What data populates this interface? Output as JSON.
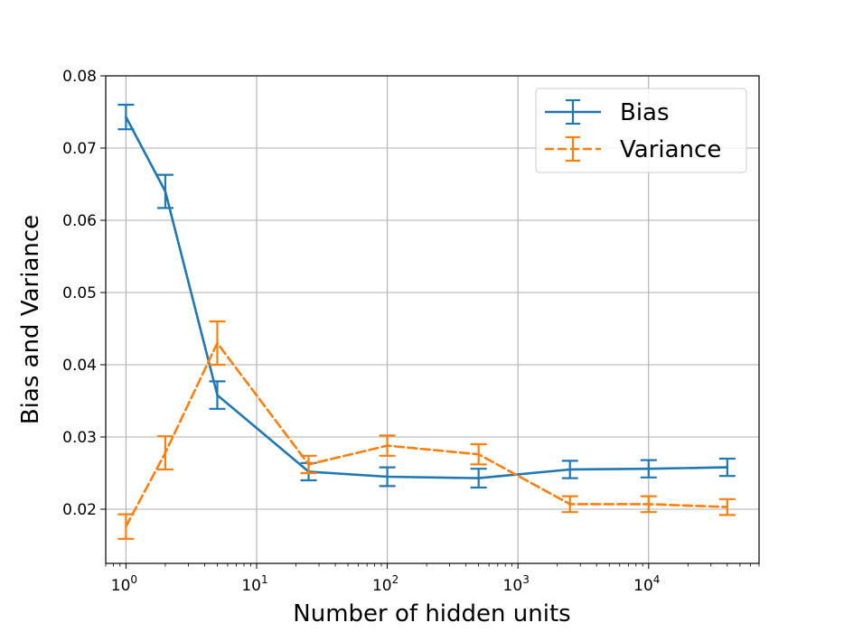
{
  "chart_data": {
    "type": "line",
    "xscale": "log",
    "xlabel": "Number of hidden units",
    "ylabel": "Bias and Variance",
    "xlim": [
      0.7,
      70000
    ],
    "ylim": [
      0.0125,
      0.08
    ],
    "yticks": [
      "0.02",
      "0.03",
      "0.04",
      "0.05",
      "0.06",
      "0.07",
      "0.08"
    ],
    "xticks": [
      {
        "value": 1,
        "base": "10",
        "exp": "0"
      },
      {
        "value": 10,
        "base": "10",
        "exp": "1"
      },
      {
        "value": 100,
        "base": "10",
        "exp": "2"
      },
      {
        "value": 1000,
        "base": "10",
        "exp": "3"
      },
      {
        "value": 10000,
        "base": "10",
        "exp": "4"
      }
    ],
    "grid": true,
    "legend_position": "top-right",
    "series": [
      {
        "name": "Bias",
        "color": "#1f77b4",
        "linestyle": "solid",
        "points": [
          {
            "x": 1,
            "y": 0.0743,
            "err": 0.0017
          },
          {
            "x": 2,
            "y": 0.064,
            "err": 0.0023
          },
          {
            "x": 5,
            "y": 0.0358,
            "err": 0.0019
          },
          {
            "x": 25,
            "y": 0.0252,
            "err": 0.0012
          },
          {
            "x": 100,
            "y": 0.0245,
            "err": 0.0013
          },
          {
            "x": 500,
            "y": 0.0243,
            "err": 0.0013
          },
          {
            "x": 2500,
            "y": 0.0255,
            "err": 0.0012
          },
          {
            "x": 10000,
            "y": 0.0256,
            "err": 0.0012
          },
          {
            "x": 40000,
            "y": 0.0258,
            "err": 0.0012
          }
        ]
      },
      {
        "name": "Variance",
        "color": "#ff7f0e",
        "linestyle": "dashed",
        "points": [
          {
            "x": 1,
            "y": 0.0176,
            "err": 0.0017
          },
          {
            "x": 2,
            "y": 0.0278,
            "err": 0.0023
          },
          {
            "x": 5,
            "y": 0.043,
            "err": 0.003
          },
          {
            "x": 25,
            "y": 0.0262,
            "err": 0.0012
          },
          {
            "x": 100,
            "y": 0.0288,
            "err": 0.0014
          },
          {
            "x": 500,
            "y": 0.0276,
            "err": 0.0014
          },
          {
            "x": 2500,
            "y": 0.0207,
            "err": 0.0011
          },
          {
            "x": 10000,
            "y": 0.0207,
            "err": 0.0011
          },
          {
            "x": 40000,
            "y": 0.0203,
            "err": 0.0011
          }
        ]
      }
    ]
  }
}
